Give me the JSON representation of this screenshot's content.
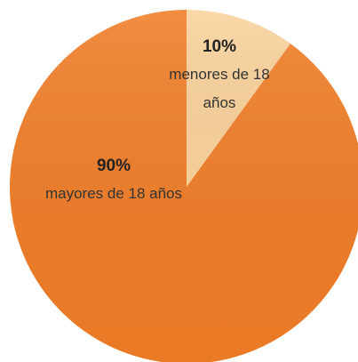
{
  "chart_data": {
    "type": "pie",
    "categories": [
      "menores de 18 años",
      "mayores de 18 años"
    ],
    "values": [
      10,
      90
    ],
    "value_labels": [
      "10%",
      "90%"
    ],
    "colors": [
      "#fad39d",
      "#f07d27"
    ]
  }
}
